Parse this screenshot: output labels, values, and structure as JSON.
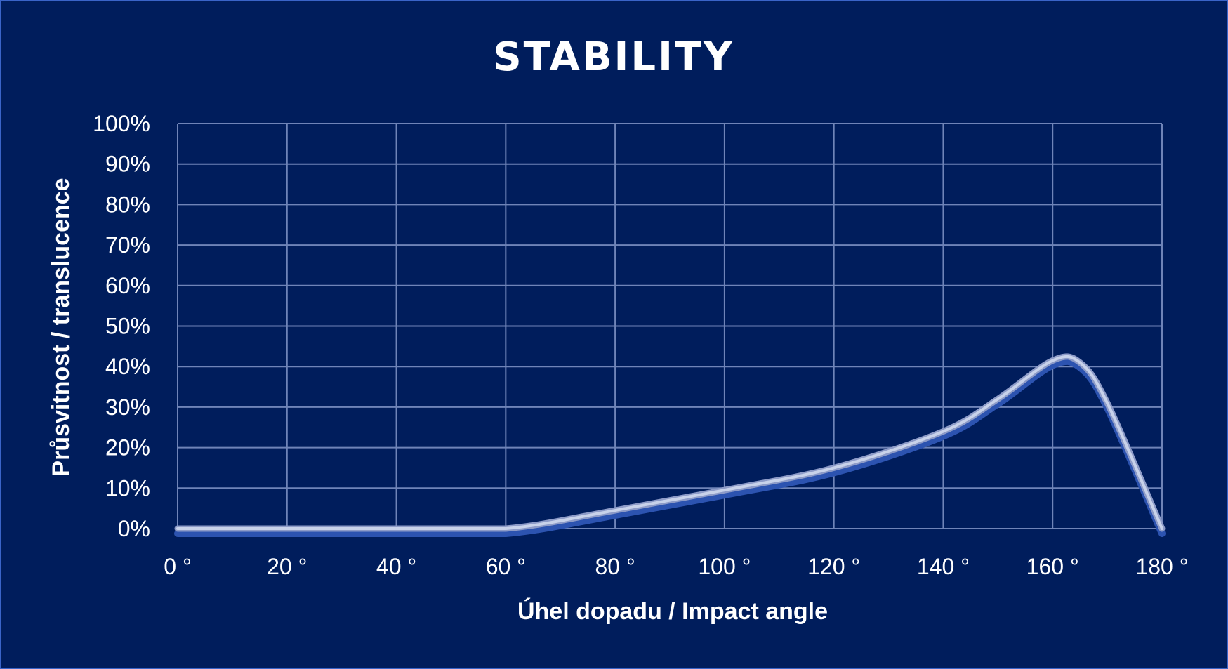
{
  "chart_data": {
    "type": "line",
    "title": "STABILITY",
    "xlabel": "Úhel dopadu / Impact angle",
    "ylabel": "Průsvitnost / translucence",
    "xlim": [
      0,
      180
    ],
    "ylim": [
      0,
      100
    ],
    "x_ticks": [
      "0 °",
      "20 °",
      "40 °",
      "60 °",
      "80 °",
      "100 °",
      "120 °",
      "140 °",
      "160 °",
      "180 °"
    ],
    "y_ticks": [
      "0%",
      "10%",
      "20%",
      "30%",
      "40%",
      "50%",
      "60%",
      "70%",
      "80%",
      "90%",
      "100%"
    ],
    "grid": true,
    "series": [
      {
        "color": "#c8d2ea",
        "x": [
          0,
          20,
          40,
          60,
          80,
          100,
          120,
          140,
          150,
          160,
          165,
          170,
          180
        ],
        "values": [
          0,
          0,
          0,
          0,
          4.5,
          9.5,
          15,
          24,
          32,
          41.5,
          41,
          31,
          0
        ]
      }
    ]
  }
}
